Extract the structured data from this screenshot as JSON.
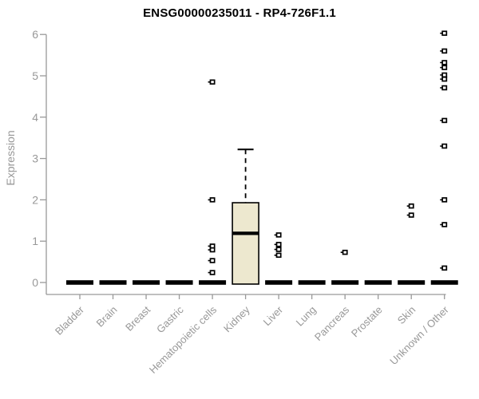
{
  "title": "ENSG00000235011 - RP4-726F1.1",
  "chart_data": {
    "type": "boxplot",
    "title": "ENSG00000235011 - RP4-726F1.1",
    "ylabel": "Expression",
    "xlabel": "",
    "ylim": [
      0,
      6
    ],
    "yticks": [
      0,
      1,
      2,
      3,
      4,
      5,
      6
    ],
    "grid": false,
    "legend": "none",
    "categories": [
      "Bladder",
      "Brain",
      "Breast",
      "Gastric",
      "Hematopoietic cells",
      "Kidney",
      "Liver",
      "Lung",
      "Pancreas",
      "Prostate",
      "Skin",
      "Unknown / Other"
    ],
    "boxes": [
      {
        "category": "Bladder",
        "q1": 0,
        "median": 0,
        "q3": 0,
        "whisker_low": 0,
        "whisker_high": 0,
        "outliers": []
      },
      {
        "category": "Brain",
        "q1": 0,
        "median": 0,
        "q3": 0,
        "whisker_low": 0,
        "whisker_high": 0,
        "outliers": []
      },
      {
        "category": "Breast",
        "q1": 0,
        "median": 0,
        "q3": 0,
        "whisker_low": 0,
        "whisker_high": 0,
        "outliers": []
      },
      {
        "category": "Gastric",
        "q1": 0,
        "median": 0,
        "q3": 0,
        "whisker_low": 0,
        "whisker_high": 0,
        "outliers": []
      },
      {
        "category": "Hematopoietic cells",
        "q1": 0,
        "median": 0,
        "q3": 0,
        "whisker_low": 0,
        "whisker_high": 0,
        "outliers": [
          4.85,
          2.0,
          0.88,
          0.79,
          0.53,
          0.24
        ]
      },
      {
        "category": "Kidney",
        "q1": 0,
        "median": 1.19,
        "q3": 1.93,
        "whisker_low": 0,
        "whisker_high": 3.22,
        "outliers": []
      },
      {
        "category": "Liver",
        "q1": 0,
        "median": 0,
        "q3": 0,
        "whisker_low": 0,
        "whisker_high": 0,
        "outliers": [
          1.15,
          0.92,
          0.8,
          0.66
        ]
      },
      {
        "category": "Lung",
        "q1": 0,
        "median": 0,
        "q3": 0,
        "whisker_low": 0,
        "whisker_high": 0,
        "outliers": []
      },
      {
        "category": "Pancreas",
        "q1": 0,
        "median": 0,
        "q3": 0,
        "whisker_low": 0,
        "whisker_high": 0,
        "outliers": [
          0.73
        ]
      },
      {
        "category": "Prostate",
        "q1": 0,
        "median": 0,
        "q3": 0,
        "whisker_low": 0,
        "whisker_high": 0,
        "outliers": []
      },
      {
        "category": "Skin",
        "q1": 0,
        "median": 0,
        "q3": 0,
        "whisker_low": 0,
        "whisker_high": 0,
        "outliers": [
          1.85,
          1.63
        ]
      },
      {
        "category": "Unknown / Other",
        "q1": 0,
        "median": 0,
        "q3": 0,
        "whisker_low": 0,
        "whisker_high": 0,
        "outliers": [
          6.03,
          5.6,
          5.32,
          5.2,
          5.02,
          4.92,
          4.71,
          3.92,
          3.3,
          2.0,
          1.4,
          0.35
        ]
      }
    ],
    "colors": {
      "box_fill": "#EDE8CF",
      "box_border": "#000000",
      "median": "#000000",
      "zero_bar": "#000000",
      "outlier_stroke": "#000000",
      "outlier_fill": "#FFFFFF",
      "axis": "#999999",
      "tick_label": "#989898",
      "title": "#000000",
      "background": "#FFFFFF"
    }
  }
}
